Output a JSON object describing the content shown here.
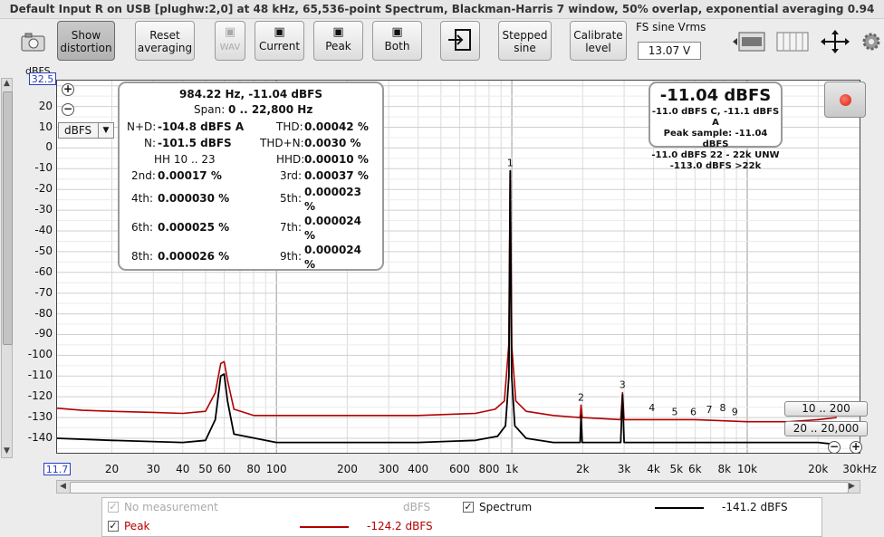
{
  "window_title": "Default Input R on USB [plughw:2,0] at 48 kHz, 65,536-point Spectrum, Blackman-Harris 7 window, 50% overlap, exponential averaging 0.94",
  "toolbar": {
    "show_distortion": "Show\ndistortion",
    "reset_averaging": "Reset\naveraging",
    "wav": "WAV",
    "current": "Current",
    "peak": "Peak",
    "both": "Both",
    "stepped_sine": "Stepped\nsine",
    "calibrate_level": "Calibrate\nlevel",
    "fs_label": "FS sine Vrms",
    "fs_value": "13.07 V"
  },
  "icons": {
    "camera": "camera-icon",
    "save": "save-icon",
    "input": "input-icon",
    "layout": "layout-icon",
    "columns": "columns-icon",
    "fit": "fit-arrows-icon",
    "settings": "gear-icon"
  },
  "y_unit": "dBFS",
  "y_top_value": "32.5",
  "x_left_value": "11.7",
  "unit_select": "dBFS",
  "info": {
    "freq_line": "984.22 Hz, -11.04 dBFS",
    "span_label": "Span:",
    "span_value": "0 .. 22,800 Hz",
    "nd_label": "N+D:",
    "nd_value": "-104.8 dBFS A",
    "thd_label": "THD:",
    "thd_value": "0.00042 %",
    "n_label": "N:",
    "n_value": "-101.5 dBFS",
    "thdn_label": "THD+N:",
    "thdn_value": "0.0030 %",
    "hh_label": "HH 10 .. 23",
    "hhd_label": "HHD:",
    "hhd_value": "0.00010 %",
    "h2_label": "2nd:",
    "h2_value": "0.00017 %",
    "h3_label": "3rd:",
    "h3_value": "0.00037 %",
    "h4_label": "4th:",
    "h4_value": "0.000030 %",
    "h5_label": "5th:",
    "h5_value": "0.000023\n%",
    "h6_label": "6th:",
    "h6_value": "0.000025 %",
    "h7_label": "7th:",
    "h7_value": "0.000024\n%",
    "h8_label": "8th:",
    "h8_value": "0.000026 %",
    "h9_label": "9th:",
    "h9_value": "0.000024\n%"
  },
  "level_box": {
    "main": "-11.04 dBFS",
    "line1": "-11.0 dBFS C, -11.1 dBFS A",
    "line2": "Peak sample: -11.04 dBFS",
    "line3": "-11.0 dBFS 22 - 22k UNW",
    "line4": "-113.0 dBFS >22k"
  },
  "range_buttons": [
    "10 .. 200",
    "20 .. 20,000"
  ],
  "legend": {
    "no_measurement": "No measurement",
    "no_measurement_unit": "dBFS",
    "spectrum": "Spectrum",
    "spectrum_value": "-141.2 dBFS",
    "peak": "Peak",
    "peak_value": "-124.2 dBFS"
  },
  "colors": {
    "spectrum": "#000000",
    "peak": "#b30000",
    "accent_blue": "#2b3fbf"
  },
  "chart_data": {
    "type": "line",
    "x_scale": "log",
    "xlim": [
      11.7,
      30000
    ],
    "ylim": [
      -147,
      32.5
    ],
    "ylabel": "dBFS",
    "grid": true,
    "x_ticks": [
      {
        "v": 20,
        "label": "20"
      },
      {
        "v": 30,
        "label": "30"
      },
      {
        "v": 40,
        "label": "40"
      },
      {
        "v": 50,
        "label": "50"
      },
      {
        "v": 60,
        "label": "60"
      },
      {
        "v": 80,
        "label": "80"
      },
      {
        "v": 100,
        "label": "100"
      },
      {
        "v": 200,
        "label": "200"
      },
      {
        "v": 300,
        "label": "300"
      },
      {
        "v": 400,
        "label": "400"
      },
      {
        "v": 600,
        "label": "600"
      },
      {
        "v": 800,
        "label": "800"
      },
      {
        "v": 1000,
        "label": "1k"
      },
      {
        "v": 2000,
        "label": "2k"
      },
      {
        "v": 3000,
        "label": "3k"
      },
      {
        "v": 4000,
        "label": "4k"
      },
      {
        "v": 5000,
        "label": "5k"
      },
      {
        "v": 6000,
        "label": "6k"
      },
      {
        "v": 8000,
        "label": "8k"
      },
      {
        "v": 10000,
        "label": "10k"
      },
      {
        "v": 20000,
        "label": "20k"
      },
      {
        "v": 30000,
        "label": "30kHz"
      }
    ],
    "y_ticks": [
      20,
      10,
      0,
      -10,
      -20,
      -30,
      -40,
      -50,
      -60,
      -70,
      -80,
      -90,
      -100,
      -110,
      -120,
      -130,
      -140
    ],
    "series": [
      {
        "name": "Peak",
        "color": "#b30000",
        "points": [
          [
            11.7,
            -125.5
          ],
          [
            15,
            -126.5
          ],
          [
            20,
            -127
          ],
          [
            30,
            -127.5
          ],
          [
            40,
            -128
          ],
          [
            50,
            -127
          ],
          [
            55,
            -118
          ],
          [
            58,
            -104
          ],
          [
            60,
            -103
          ],
          [
            62,
            -112
          ],
          [
            66,
            -126
          ],
          [
            80,
            -129
          ],
          [
            100,
            -129
          ],
          [
            200,
            -129
          ],
          [
            400,
            -129
          ],
          [
            700,
            -128
          ],
          [
            850,
            -126
          ],
          [
            930,
            -122
          ],
          [
            970,
            -95
          ],
          [
            984,
            -11
          ],
          [
            1000,
            -96
          ],
          [
            1040,
            -122
          ],
          [
            1150,
            -127
          ],
          [
            1500,
            -129
          ],
          [
            1950,
            -130
          ],
          [
            1968,
            -124
          ],
          [
            1990,
            -130
          ],
          [
            2900,
            -131
          ],
          [
            2952,
            -118
          ],
          [
            3000,
            -131
          ],
          [
            4000,
            -131
          ],
          [
            6000,
            -131
          ],
          [
            10000,
            -132
          ],
          [
            15000,
            -132
          ],
          [
            20000,
            -131
          ],
          [
            24000,
            -130
          ]
        ]
      },
      {
        "name": "Spectrum",
        "color": "#000000",
        "points": [
          [
            11.7,
            -140
          ],
          [
            20,
            -141
          ],
          [
            40,
            -142
          ],
          [
            50,
            -141
          ],
          [
            55,
            -131
          ],
          [
            58,
            -110
          ],
          [
            60,
            -109
          ],
          [
            62,
            -122
          ],
          [
            66,
            -138
          ],
          [
            100,
            -142
          ],
          [
            200,
            -142
          ],
          [
            400,
            -142
          ],
          [
            700,
            -141
          ],
          [
            870,
            -139
          ],
          [
            940,
            -134
          ],
          [
            972,
            -110
          ],
          [
            984,
            -11
          ],
          [
            998,
            -110
          ],
          [
            1030,
            -134
          ],
          [
            1150,
            -140
          ],
          [
            1500,
            -142
          ],
          [
            1950,
            -142
          ],
          [
            1968,
            -129
          ],
          [
            1990,
            -142
          ],
          [
            2900,
            -142
          ],
          [
            2952,
            -119
          ],
          [
            3000,
            -142
          ],
          [
            4000,
            -142
          ],
          [
            6000,
            -142
          ],
          [
            10000,
            -142
          ],
          [
            15000,
            -142
          ],
          [
            20000,
            -142
          ],
          [
            24000,
            -143
          ]
        ]
      }
    ],
    "harmonic_labels": [
      {
        "n": "1",
        "x": 984,
        "y": -11
      },
      {
        "n": "2",
        "x": 1968,
        "y": -124
      },
      {
        "n": "3",
        "x": 2952,
        "y": -118
      },
      {
        "n": "4",
        "x": 3937,
        "y": -129
      },
      {
        "n": "5",
        "x": 4921,
        "y": -131
      },
      {
        "n": "6",
        "x": 5905,
        "y": -131
      },
      {
        "n": "7",
        "x": 6890,
        "y": -130
      },
      {
        "n": "8",
        "x": 7874,
        "y": -129
      },
      {
        "n": "9",
        "x": 8858,
        "y": -131
      }
    ]
  }
}
